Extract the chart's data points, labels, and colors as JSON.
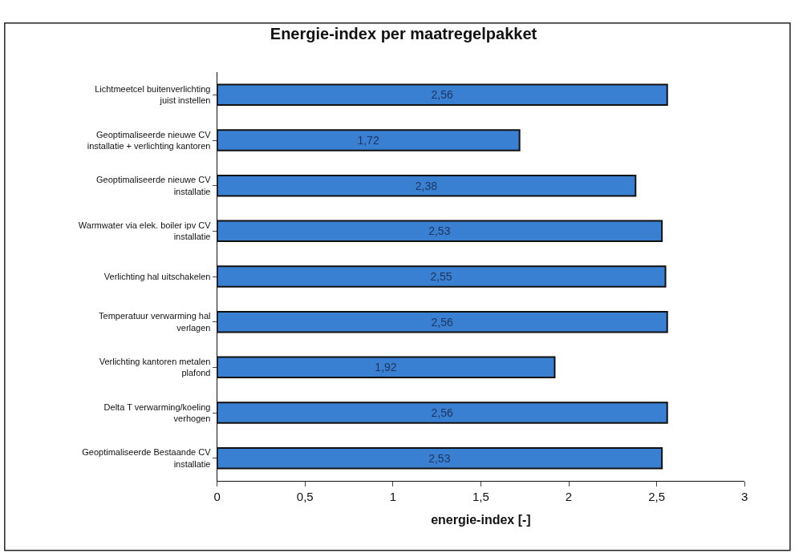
{
  "chart_data": {
    "type": "bar",
    "orientation": "horizontal",
    "title": "Energie-index per maatregelpakket",
    "xlabel": "energie-index [-]",
    "categories": [
      "Lichtmeetcel buitenverlichting juist instellen",
      "Geoptimaliseerde nieuwe CV installatie + verlichting kantoren",
      "Geoptimaliseerde nieuwe CV installatie",
      "Warmwater via elek. boiler ipv CV installatie",
      "Verlichting hal uitschakelen",
      "Temperatuur verwarming hal verlagen",
      "Verlichting kantoren metalen plafond",
      "Delta T verwarming/koeling verhogen",
      "Geoptimaliseerde Bestaande CV installatie"
    ],
    "values": [
      2.56,
      1.72,
      2.38,
      2.53,
      2.55,
      2.56,
      1.92,
      2.56,
      2.53
    ],
    "value_labels": [
      "2,56",
      "1,72",
      "2,38",
      "2,53",
      "2,55",
      "2,56",
      "1,92",
      "2,56",
      "2,53"
    ],
    "color": "#3a80d2",
    "xlim": [
      0,
      3
    ],
    "xticks": [
      {
        "value": 0,
        "label": "0"
      },
      {
        "value": 0.5,
        "label": "0,5"
      },
      {
        "value": 1,
        "label": "1"
      },
      {
        "value": 1.5,
        "label": "1,5"
      },
      {
        "value": 2,
        "label": "2"
      },
      {
        "value": 2.5,
        "label": "2,5"
      },
      {
        "value": 3,
        "label": "3"
      }
    ],
    "legend": false
  }
}
